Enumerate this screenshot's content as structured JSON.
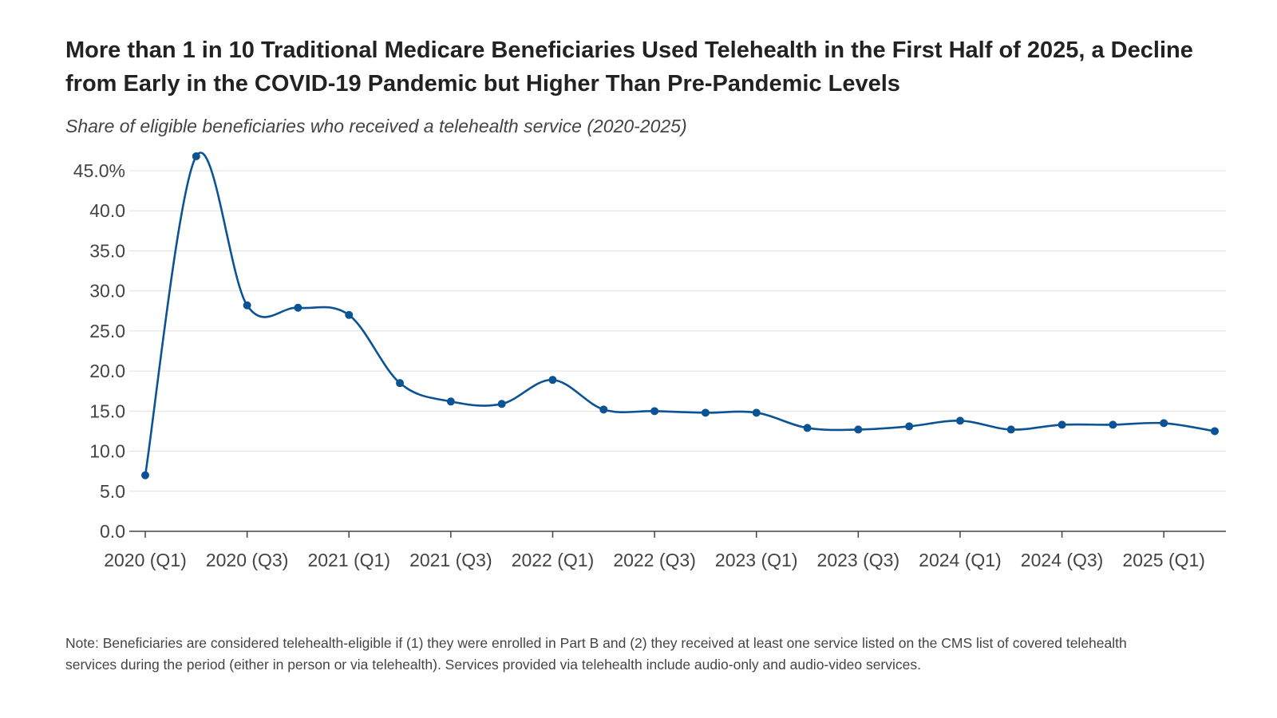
{
  "title": "More than 1 in 10 Traditional Medicare Beneficiaries Used Telehealth in the First Half of 2025, a Decline from Early in the COVID-19 Pandemic but Higher Than Pre-Pandemic Levels",
  "subtitle": "Share of eligible beneficiaries who received a telehealth service (2020-2025)",
  "note": "Note: Beneficiaries are considered telehealth-eligible if (1) they were enrolled in Part B and (2) they received at least one service listed on the CMS list of covered telehealth services during the period (either in person or via telehealth). Services provided via telehealth include audio-only and audio-video services.",
  "colors": {
    "line": "#0b5394",
    "grid": "#e0e0e0",
    "axis": "#444444",
    "tick_text": "#444444"
  },
  "chart_data": {
    "type": "line",
    "title": "More than 1 in 10 Traditional Medicare Beneficiaries Used Telehealth in the First Half of 2025, a Decline from Early in the COVID-19 Pandemic but Higher Than Pre-Pandemic Levels",
    "subtitle": "Share of eligible beneficiaries who received a telehealth service (2020-2025)",
    "xlabel": "",
    "ylabel": "",
    "x": [
      "2020 (Q1)",
      "2020 (Q2)",
      "2020 (Q3)",
      "2020 (Q4)",
      "2021 (Q1)",
      "2021 (Q2)",
      "2021 (Q3)",
      "2021 (Q4)",
      "2022 (Q1)",
      "2022 (Q2)",
      "2022 (Q3)",
      "2022 (Q4)",
      "2023 (Q1)",
      "2023 (Q2)",
      "2023 (Q3)",
      "2023 (Q4)",
      "2024 (Q1)",
      "2024 (Q2)",
      "2024 (Q3)",
      "2024 (Q4)",
      "2025 (Q1)",
      "2025 (Q2)"
    ],
    "series": [
      {
        "values": [
          7.0,
          46.8,
          28.2,
          27.9,
          27.0,
          18.5,
          16.2,
          15.9,
          18.9,
          15.2,
          15.0,
          14.8,
          14.8,
          12.9,
          12.7,
          13.1,
          13.8,
          12.7,
          13.3,
          13.3,
          13.5,
          12.5
        ]
      }
    ],
    "x_tick_labels": [
      "2020 (Q1)",
      "2020 (Q3)",
      "2021 (Q1)",
      "2021 (Q3)",
      "2022 (Q1)",
      "2022 (Q3)",
      "2023 (Q1)",
      "2023 (Q3)",
      "2024 (Q1)",
      "2024 (Q3)",
      "2025 (Q1)"
    ],
    "y_ticks": [
      0,
      5,
      10,
      15,
      20,
      25,
      30,
      35,
      40,
      45
    ],
    "y_tick_labels": [
      "0.0",
      "5.0",
      "10.0",
      "15.0",
      "20.0",
      "25.0",
      "30.0",
      "35.0",
      "40.0",
      "45.0%"
    ],
    "ylim": [
      0,
      45
    ],
    "grid": "horizontal",
    "legend": "none"
  }
}
